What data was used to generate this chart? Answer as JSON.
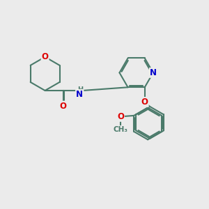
{
  "background_color": "#ebebeb",
  "bond_color": "#4a7a6a",
  "bond_width": 1.5,
  "atom_colors": {
    "O": "#dd0000",
    "N": "#0000cc",
    "C": "#4a7a6a"
  },
  "font_size_atom": 8.5,
  "fig_size": [
    3.0,
    3.0
  ],
  "dpi": 100
}
